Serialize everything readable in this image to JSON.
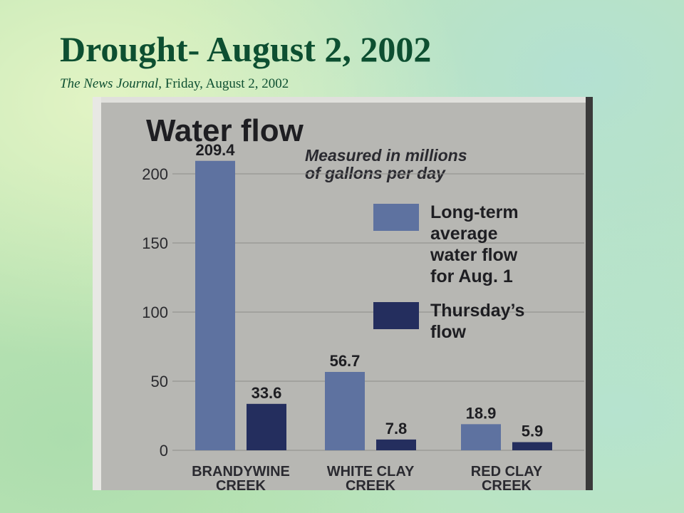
{
  "slide": {
    "title": "Drought- August 2, 2002",
    "subtitle_source": "The News Journal",
    "subtitle_rest": ", Friday, August 2, 2002"
  },
  "colors": {
    "title": "#0d4f31",
    "long_term": "#5e72a0",
    "thursday": "#242e5e",
    "paper": "#b7b7b3"
  },
  "chart_data": {
    "type": "bar",
    "title": "Water flow",
    "subtitle_lines": [
      "Measured in millions",
      "of gallons per day"
    ],
    "categories": [
      [
        "BRANDYWINE",
        "CREEK"
      ],
      [
        "WHITE CLAY",
        "CREEK"
      ],
      [
        "RED CLAY",
        "CREEK"
      ]
    ],
    "series": [
      {
        "name_lines": [
          "Long-term",
          "average",
          "water  flow",
          "for  Aug.  1"
        ],
        "values": [
          209.4,
          56.7,
          18.9
        ],
        "labels": [
          "209.4",
          "56.7",
          "18.9"
        ]
      },
      {
        "name_lines": [
          "Thursday’s",
          "flow"
        ],
        "values": [
          33.6,
          7.8,
          5.9
        ],
        "labels": [
          "33.6",
          "7.8",
          "5.9"
        ]
      }
    ],
    "yticks": [
      0,
      50,
      100,
      150,
      200
    ],
    "ylim": [
      0,
      215
    ],
    "grid": true,
    "legend_position": "right"
  }
}
